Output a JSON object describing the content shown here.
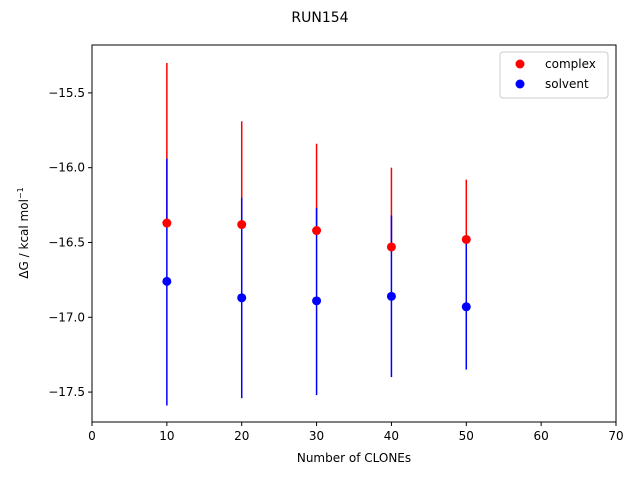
{
  "chart_data": {
    "type": "scatter",
    "title": "RUN154",
    "xlabel": "Number of CLONEs",
    "ylabel_prefix": "ΔG / kcal mol",
    "ylabel_sup": "−1",
    "xlim": [
      0,
      70
    ],
    "ylim": [
      -17.7,
      -15.18
    ],
    "xticks": [
      0,
      10,
      20,
      30,
      40,
      50,
      60,
      70
    ],
    "yticks": [
      -17.5,
      -17.0,
      -16.5,
      -16.0,
      -15.5
    ],
    "ytick_labels": [
      "−17.5",
      "−17.0",
      "−16.5",
      "−16.0",
      "−15.5"
    ],
    "grid": false,
    "legend": "upper-right",
    "series": [
      {
        "name": "complex",
        "color": "#ff0000",
        "x": [
          10,
          20,
          30,
          40,
          50
        ],
        "y": [
          -16.37,
          -16.38,
          -16.42,
          -16.53,
          -16.48
        ],
        "err_low": [
          -16.37,
          -16.38,
          -16.42,
          -16.53,
          -16.48
        ],
        "err_high": [
          -15.3,
          -15.69,
          -15.84,
          -16.0,
          -16.08
        ]
      },
      {
        "name": "solvent",
        "color": "#0000ff",
        "x": [
          10,
          20,
          30,
          40,
          50
        ],
        "y": [
          -16.76,
          -16.87,
          -16.89,
          -16.86,
          -16.93
        ],
        "err_low": [
          -17.59,
          -17.54,
          -17.52,
          -17.4,
          -17.35
        ],
        "err_high": [
          -15.94,
          -16.2,
          -16.27,
          -16.32,
          -16.48
        ]
      }
    ]
  }
}
